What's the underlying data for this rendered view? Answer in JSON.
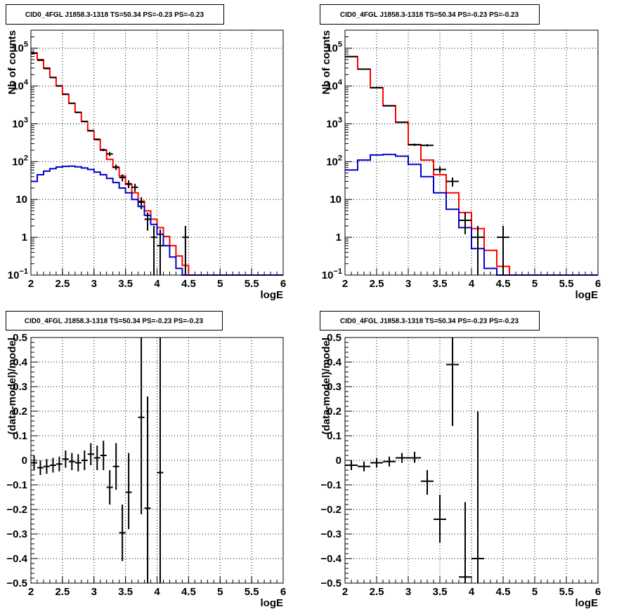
{
  "colors": {
    "total_model": "#ff0000",
    "source_model": "#0000cc",
    "data": "#000000"
  },
  "chart_data": [
    {
      "type": "line",
      "title": "CID0_4FGL J1858.3-1318 TS=50.34 PS=-0.23 PS=-0.23",
      "xlabel": "logE",
      "ylabel": "Nb of counts",
      "xlim": [
        2,
        6
      ],
      "ylim": [
        0.1,
        300000
      ],
      "yscale": "log",
      "grid": true,
      "xticks": [
        "2",
        "2.5",
        "3",
        "3.5",
        "4",
        "4.5",
        "5",
        "5.5",
        "6"
      ],
      "yticks": [
        {
          "value": 0.1,
          "label": "10",
          "sup": "−1"
        },
        {
          "value": 1,
          "label": "1",
          "sup": ""
        },
        {
          "value": 10,
          "label": "10",
          "sup": ""
        },
        {
          "value": 100,
          "label": "10",
          "sup": "2"
        },
        {
          "value": 1000,
          "label": "10",
          "sup": "3"
        },
        {
          "value": 10000,
          "label": "10",
          "sup": "4"
        },
        {
          "value": 100000,
          "label": "10",
          "sup": "5"
        }
      ],
      "bin_width": 0.1,
      "series": [
        {
          "style": "step",
          "color": "#ff0000",
          "bin_starts": [
            2.0,
            2.1,
            2.2,
            2.3,
            2.4,
            2.5,
            2.6,
            2.7,
            2.8,
            2.9,
            3.0,
            3.1,
            3.2,
            3.3,
            3.4,
            3.5,
            3.6,
            3.7,
            3.8,
            3.9,
            4.0,
            4.1,
            4.2,
            4.3,
            4.4,
            4.5,
            4.6,
            4.7,
            4.8,
            4.9,
            5.0,
            5.1,
            5.2,
            5.3,
            5.4,
            5.5,
            5.6,
            5.7,
            5.8,
            5.9
          ],
          "values": [
            75000,
            50000,
            30000,
            17000,
            10000,
            6000,
            3500,
            2000,
            1150,
            650,
            380,
            200,
            115,
            70,
            42,
            25,
            15,
            9,
            5,
            3,
            1.8,
            1.05,
            0.6,
            0.32,
            0.18,
            0.1,
            0.1,
            0.1,
            0.1,
            0.1,
            0.1,
            0.1,
            0.1,
            0.1,
            0.1,
            0.1,
            0.1,
            0.1,
            0.1,
            0.1
          ]
        },
        {
          "style": "step",
          "color": "#0000cc",
          "bin_starts": [
            2.0,
            2.1,
            2.2,
            2.3,
            2.4,
            2.5,
            2.6,
            2.7,
            2.8,
            2.9,
            3.0,
            3.1,
            3.2,
            3.3,
            3.4,
            3.5,
            3.6,
            3.7,
            3.8,
            3.9,
            4.0,
            4.1,
            4.2,
            4.3,
            4.4,
            4.5,
            4.6,
            4.7,
            4.8,
            4.9,
            5.0,
            5.1,
            5.2,
            5.3,
            5.4,
            5.5,
            5.6,
            5.7,
            5.8,
            5.9
          ],
          "values": [
            30,
            45,
            56,
            65,
            72,
            75,
            76,
            73,
            68,
            62,
            53,
            45,
            36,
            28,
            20,
            15,
            10,
            6.5,
            3.8,
            2.2,
            1.2,
            0.6,
            0.3,
            0.15,
            0.1,
            0.1,
            0.1,
            0.1,
            0.1,
            0.1,
            0.1,
            0.1,
            0.1,
            0.1,
            0.1,
            0.1,
            0.1,
            0.1,
            0.1,
            0.1
          ]
        },
        {
          "style": "errorbar",
          "color": "#000000",
          "x": [
            2.05,
            2.15,
            2.25,
            2.35,
            2.45,
            2.55,
            2.65,
            2.75,
            2.85,
            2.95,
            3.05,
            3.15,
            3.25,
            3.35,
            3.45,
            3.55,
            3.65,
            3.75,
            3.85,
            3.95,
            4.05,
            4.45
          ],
          "y": [
            74000,
            48000,
            29000,
            16800,
            10100,
            6100,
            3500,
            2020,
            1160,
            660,
            390,
            205,
            160,
            72,
            38,
            26,
            21,
            8.5,
            3.0,
            1.0,
            0.6,
            1.0
          ],
          "ylow": [
            73700,
            47800,
            28800,
            16700,
            10000,
            6050,
            3450,
            1990,
            1130,
            640,
            370,
            190,
            140,
            60,
            30,
            20,
            16,
            5.5,
            1.5,
            0.1,
            0.1,
            0.1
          ],
          "yhigh": [
            74300,
            48200,
            29200,
            16900,
            10200,
            6150,
            3550,
            2050,
            1190,
            680,
            410,
            220,
            180,
            84,
            46,
            32,
            26,
            11.5,
            4.5,
            2.0,
            1.6,
            2.0
          ],
          "xerr": 0.05
        }
      ]
    },
    {
      "type": "line",
      "title": "CID0_4FGL J1858.3-1318 TS=50.34 PS=-0.23 PS=-0.23",
      "xlabel": "logE",
      "ylabel": "Nb of counts",
      "xlim": [
        2,
        6
      ],
      "ylim": [
        0.1,
        300000
      ],
      "yscale": "log",
      "grid": true,
      "xticks": [
        "2",
        "2.5",
        "3",
        "3.5",
        "4",
        "4.5",
        "5",
        "5.5",
        "6"
      ],
      "yticks": [
        {
          "value": 0.1,
          "label": "10",
          "sup": "−1"
        },
        {
          "value": 1,
          "label": "1",
          "sup": ""
        },
        {
          "value": 10,
          "label": "10",
          "sup": ""
        },
        {
          "value": 100,
          "label": "10",
          "sup": "2"
        },
        {
          "value": 1000,
          "label": "10",
          "sup": "3"
        },
        {
          "value": 10000,
          "label": "10",
          "sup": "4"
        },
        {
          "value": 100000,
          "label": "10",
          "sup": "5"
        }
      ],
      "bin_width": 0.2,
      "series": [
        {
          "style": "step",
          "color": "#ff0000",
          "bin_starts": [
            2.0,
            2.2,
            2.4,
            2.6,
            2.8,
            3.0,
            3.2,
            3.4,
            3.6,
            3.8,
            4.0,
            4.2,
            4.4,
            4.6,
            4.8,
            5.0,
            5.2,
            5.4,
            5.6,
            5.8
          ],
          "values": [
            60000,
            28000,
            9000,
            3000,
            1100,
            280,
            110,
            45,
            15,
            4.5,
            1.7,
            0.45,
            0.17,
            0.1,
            0.1,
            0.1,
            0.1,
            0.1,
            0.1,
            0.1
          ]
        },
        {
          "style": "step",
          "color": "#0000cc",
          "bin_starts": [
            2.0,
            2.2,
            2.4,
            2.6,
            2.8,
            3.0,
            3.2,
            3.4,
            3.6,
            3.8,
            4.0,
            4.2,
            4.4,
            4.6,
            4.8,
            5.0,
            5.2,
            5.4,
            5.6,
            5.8
          ],
          "values": [
            60,
            110,
            150,
            155,
            140,
            85,
            40,
            15,
            5.5,
            1.8,
            0.5,
            0.15,
            0.1,
            0.1,
            0.1,
            0.1,
            0.1,
            0.1,
            0.1,
            0.1
          ]
        },
        {
          "style": "errorbar",
          "color": "#000000",
          "x": [
            2.1,
            2.3,
            2.5,
            2.7,
            2.9,
            3.1,
            3.3,
            3.5,
            3.7,
            3.9,
            4.1,
            4.5
          ],
          "y": [
            60000,
            28000,
            9000,
            3000,
            1100,
            280,
            270,
            62,
            30,
            2.8,
            1.0,
            1.0
          ],
          "ylow": [
            59700,
            27800,
            8900,
            2950,
            1060,
            260,
            250,
            50,
            22,
            1.2,
            0.1,
            0.1
          ],
          "yhigh": [
            60300,
            28200,
            9100,
            3050,
            1140,
            300,
            290,
            74,
            38,
            4.5,
            2.0,
            2.0
          ],
          "xerr": 0.1
        }
      ]
    },
    {
      "type": "scatter",
      "title": "CID0_4FGL J1858.3-1318 TS=50.34 PS=-0.23 PS=-0.23",
      "xlabel": "logE",
      "ylabel": "(data-model)/model",
      "xlim": [
        2,
        6
      ],
      "ylim": [
        -0.5,
        0.5
      ],
      "yscale": "linear",
      "grid": true,
      "xticks": [
        "2",
        "2.5",
        "3",
        "3.5",
        "4",
        "4.5",
        "5",
        "5.5",
        "6"
      ],
      "yticks": [
        {
          "value": -0.5,
          "label": "−0.5"
        },
        {
          "value": -0.4,
          "label": "−0.4"
        },
        {
          "value": -0.3,
          "label": "−0.3"
        },
        {
          "value": -0.2,
          "label": "−0.2"
        },
        {
          "value": -0.1,
          "label": "−0.1"
        },
        {
          "value": 0,
          "label": "0"
        },
        {
          "value": 0.1,
          "label": "0.1"
        },
        {
          "value": 0.2,
          "label": "0.2"
        },
        {
          "value": 0.3,
          "label": "0.3"
        },
        {
          "value": 0.4,
          "label": "0.4"
        },
        {
          "value": 0.5,
          "label": "0.5"
        }
      ],
      "series": [
        {
          "style": "errorbar",
          "color": "#000000",
          "x": [
            2.05,
            2.15,
            2.25,
            2.35,
            2.45,
            2.55,
            2.65,
            2.75,
            2.85,
            2.95,
            3.05,
            3.15,
            3.25,
            3.35,
            3.45,
            3.55,
            3.75,
            3.85,
            4.05
          ],
          "y": [
            -0.01,
            -0.03,
            -0.025,
            -0.02,
            -0.015,
            0.005,
            -0.005,
            -0.01,
            0.0,
            0.025,
            0.01,
            0.02,
            -0.11,
            -0.025,
            -0.295,
            -0.13,
            0.175,
            -0.195,
            -0.05
          ],
          "ylow": [
            -0.04,
            -0.06,
            -0.055,
            -0.05,
            -0.045,
            -0.03,
            -0.04,
            -0.045,
            -0.04,
            -0.02,
            -0.04,
            -0.04,
            -0.18,
            -0.12,
            -0.41,
            -0.28,
            -0.22,
            -0.5,
            -0.5
          ],
          "yhigh": [
            0.02,
            0.0,
            0.005,
            0.01,
            0.015,
            0.04,
            0.03,
            0.025,
            0.04,
            0.07,
            0.06,
            0.08,
            -0.04,
            0.07,
            -0.18,
            0.03,
            0.5,
            0.26,
            0.5
          ],
          "xerr": 0.05
        }
      ]
    },
    {
      "type": "scatter",
      "title": "CID0_4FGL J1858.3-1318 TS=50.34 PS=-0.23 PS=-0.23",
      "xlabel": "logE",
      "ylabel": "(data-model)/model",
      "xlim": [
        2,
        6
      ],
      "ylim": [
        -0.5,
        0.5
      ],
      "yscale": "linear",
      "grid": true,
      "xticks": [
        "2",
        "2.5",
        "3",
        "3.5",
        "4",
        "4.5",
        "5",
        "5.5",
        "6"
      ],
      "yticks": [
        {
          "value": -0.5,
          "label": "−0.5"
        },
        {
          "value": -0.4,
          "label": "−0.4"
        },
        {
          "value": -0.3,
          "label": "−0.3"
        },
        {
          "value": -0.2,
          "label": "−0.2"
        },
        {
          "value": -0.1,
          "label": "−0.1"
        },
        {
          "value": 0,
          "label": "0"
        },
        {
          "value": 0.1,
          "label": "0.1"
        },
        {
          "value": 0.2,
          "label": "0.2"
        },
        {
          "value": 0.3,
          "label": "0.3"
        },
        {
          "value": 0.4,
          "label": "0.4"
        },
        {
          "value": 0.5,
          "label": "0.5"
        }
      ],
      "series": [
        {
          "style": "errorbar",
          "color": "#000000",
          "x": [
            2.1,
            2.3,
            2.5,
            2.7,
            2.9,
            3.1,
            3.3,
            3.5,
            3.7,
            3.9,
            4.1
          ],
          "y": [
            -0.02,
            -0.025,
            -0.01,
            -0.005,
            0.01,
            0.01,
            -0.085,
            -0.24,
            0.39,
            -0.475,
            -0.4
          ],
          "ylow": [
            -0.04,
            -0.045,
            -0.03,
            -0.025,
            -0.01,
            -0.01,
            -0.14,
            -0.335,
            0.14,
            -0.5,
            -0.5
          ],
          "yhigh": [
            0.0,
            -0.005,
            0.01,
            0.015,
            0.03,
            0.035,
            -0.04,
            -0.14,
            0.5,
            -0.17,
            0.2
          ],
          "xerr": 0.1
        }
      ]
    }
  ]
}
